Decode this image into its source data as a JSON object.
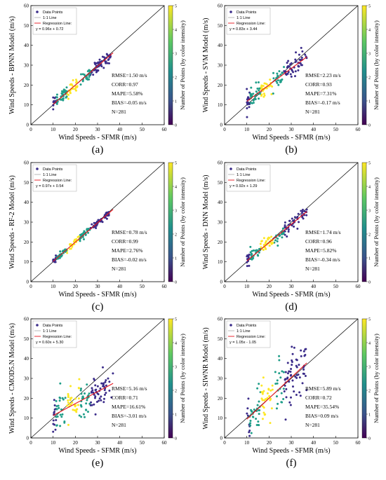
{
  "figure": {
    "legend_labels": {
      "points": "Data Points",
      "line11": "1:1 Line",
      "regression": "Regression Line:"
    },
    "colorbar_label": "Number of Points (by color intensity)",
    "colorbar_ticks": [
      "0",
      "1",
      "2",
      "3",
      "4",
      "5"
    ],
    "colors": {
      "one_to_one": "#000000",
      "regression": "#e8141c",
      "point_low": "#3b2c8a",
      "point_mid": "#1f9e89",
      "point_high": "#fde725"
    }
  },
  "chart_data": [
    {
      "panel": "(a)",
      "type": "scatter",
      "xlabel": "Wind Speeds - SFMR (m/s)",
      "ylabel": "Wind Speeds - BPNN Model (m/s)",
      "xlim": [
        0,
        60
      ],
      "ylim": [
        0,
        60
      ],
      "xticks": [
        0,
        10,
        20,
        30,
        40,
        50,
        60
      ],
      "yticks": [
        0,
        10,
        20,
        30,
        40,
        50,
        60
      ],
      "regression": {
        "slope": 0.96,
        "intercept": 0.72,
        "label": "y = 0.96x + 0.72",
        "x_range": [
          10,
          37
        ]
      },
      "stats": [
        "RMSE=1.50 m/s",
        "CORR=0.97",
        "MAPE=5.58%",
        "BIAS=-0.05 m/s",
        "N=281"
      ],
      "cloud": {
        "x_min": 10,
        "x_max": 36,
        "slope": 0.96,
        "intercept": 0.72,
        "spread": 1.6
      }
    },
    {
      "panel": "(b)",
      "type": "scatter",
      "xlabel": "Wind Speeds - SFMR (m/s)",
      "ylabel": "Wind Speeds - SVM Model (m/s)",
      "xlim": [
        0,
        60
      ],
      "ylim": [
        0,
        60
      ],
      "xticks": [
        0,
        10,
        20,
        30,
        40,
        50,
        60
      ],
      "yticks": [
        0,
        10,
        20,
        30,
        40,
        50,
        60
      ],
      "regression": {
        "slope": 0.83,
        "intercept": 3.44,
        "label": "y = 0.83x + 3.44",
        "x_range": [
          10,
          37
        ]
      },
      "stats": [
        "RMSE=2.23 m/s",
        "CORR=0.93",
        "MAPE=7.31%",
        "BIAS=-0.17 m/s",
        "N=281"
      ],
      "cloud": {
        "x_min": 10,
        "x_max": 37,
        "slope": 0.83,
        "intercept": 3.44,
        "spread": 2.3
      }
    },
    {
      "panel": "(c)",
      "type": "scatter",
      "xlabel": "Wind Speeds - SFMR (m/s)",
      "ylabel": "Wind Speeds - RF-2 Model (m/s)",
      "xlim": [
        0,
        60
      ],
      "ylim": [
        0,
        60
      ],
      "xticks": [
        0,
        10,
        20,
        30,
        40,
        50,
        60
      ],
      "yticks": [
        0,
        10,
        20,
        30,
        40,
        50,
        60
      ],
      "regression": {
        "slope": 0.97,
        "intercept": 0.54,
        "label": "y = 0.97x + 0.54",
        "x_range": [
          10,
          37
        ]
      },
      "stats": [
        "RMSE=0.78 m/s",
        "CORR=0.99",
        "MAPE=2.76%",
        "BIAS=-0.02 m/s",
        "N=281"
      ],
      "cloud": {
        "x_min": 10,
        "x_max": 36,
        "slope": 0.97,
        "intercept": 0.54,
        "spread": 0.8
      }
    },
    {
      "panel": "(d)",
      "type": "scatter",
      "xlabel": "Wind Speeds - SFMR (m/s)",
      "ylabel": "Wind Speeds - DNN Model (m/s)",
      "xlim": [
        0,
        60
      ],
      "ylim": [
        0,
        60
      ],
      "xticks": [
        0,
        10,
        20,
        30,
        40,
        50,
        60
      ],
      "yticks": [
        0,
        10,
        20,
        30,
        40,
        50,
        60
      ],
      "regression": {
        "slope": 0.92,
        "intercept": 1.29,
        "label": "y = 0.92x + 1.29",
        "x_range": [
          10,
          37
        ]
      },
      "stats": [
        "RMSE=1.74 m/s",
        "CORR=0.96",
        "MAPE=5.82%",
        "BIAS=-0.34 m/s",
        "N=281"
      ],
      "cloud": {
        "x_min": 10,
        "x_max": 37,
        "slope": 0.92,
        "intercept": 1.29,
        "spread": 1.8
      }
    },
    {
      "panel": "(e)",
      "type": "scatter",
      "xlabel": "Wind Speeds - SFMR (m/s)",
      "ylabel": "Wind Speeds - CMOD5.N Model (m/s)",
      "xlim": [
        0,
        60
      ],
      "ylim": [
        0,
        60
      ],
      "xticks": [
        0,
        10,
        20,
        30,
        40,
        50,
        60
      ],
      "yticks": [
        0,
        10,
        20,
        30,
        40,
        50,
        60
      ],
      "regression": {
        "slope": 0.6,
        "intercept": 5.3,
        "label": "y = 0.60x + 5.30",
        "x_range": [
          10,
          37
        ]
      },
      "stats": [
        "RMSE=5.16 m/s",
        "CORR=0.71",
        "MAPE=16.61%",
        "BIAS=-3.01 m/s",
        "N=281"
      ],
      "cloud": {
        "x_min": 10,
        "x_max": 37,
        "slope": 0.6,
        "intercept": 5.3,
        "spread": 4.5
      }
    },
    {
      "panel": "(f)",
      "type": "scatter",
      "xlabel": "Wind Speeds - SFMR (m/s)",
      "ylabel": "Wind Speeds - SIWNR Model (m/s)",
      "xlim": [
        0,
        60
      ],
      "ylim": [
        0,
        60
      ],
      "xticks": [
        0,
        10,
        20,
        30,
        40,
        50,
        60
      ],
      "yticks": [
        0,
        10,
        20,
        30,
        40,
        50,
        60
      ],
      "regression": {
        "slope": 1.05,
        "intercept": -1.05,
        "label": "y = 1.05x - 1.05",
        "x_range": [
          10,
          37
        ]
      },
      "stats": [
        "RMSE=5.89 m/s",
        "CORR=0.72",
        "MAPE=35.54%",
        "BIAS=0.09 m/s",
        "N=281"
      ],
      "cloud": {
        "x_min": 10,
        "x_max": 37,
        "slope": 1.05,
        "intercept": -1.05,
        "spread": 6.5
      }
    }
  ]
}
